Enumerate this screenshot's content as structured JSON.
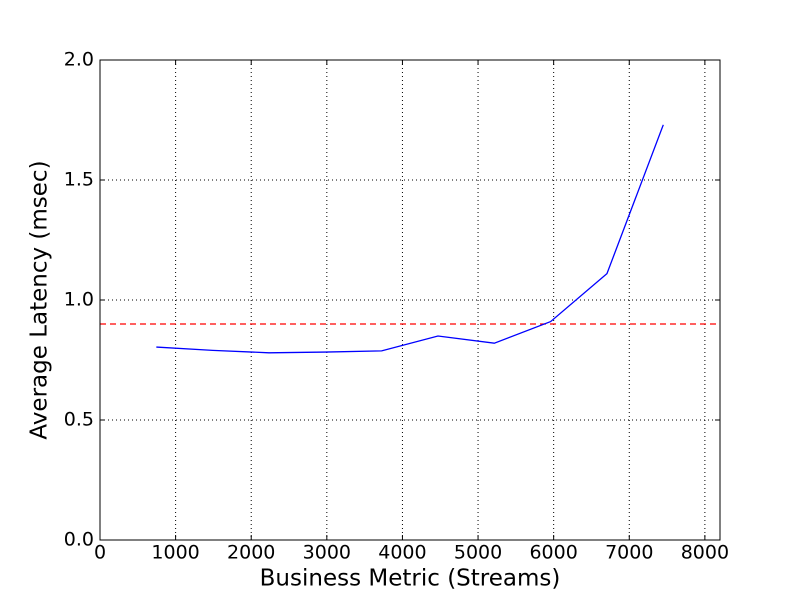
{
  "chart_data": {
    "type": "line",
    "x_label": "Business Metric (Streams)",
    "y_label": "Average Latency (msec)",
    "x": [
      745,
      1490,
      2235,
      2980,
      3725,
      4470,
      5215,
      5960,
      6705,
      7450
    ],
    "series": [
      {
        "color": "#0000ff",
        "values": [
          0.804,
          0.79,
          0.78,
          0.783,
          0.788,
          0.85,
          0.82,
          0.91,
          1.11,
          1.73
        ]
      }
    ],
    "reference_line": {
      "value": 0.9,
      "color": "#ff0000",
      "style": "dashed"
    },
    "xlim": [
      0,
      8200
    ],
    "ylim": [
      0,
      2.0
    ],
    "xticks": [
      0,
      1000,
      2000,
      3000,
      4000,
      5000,
      6000,
      7000,
      8000
    ],
    "yticks": [
      {
        "value": 0,
        "label": "0.0"
      },
      0.5,
      {
        "value": 1.0,
        "label": "1.0"
      },
      1.5,
      {
        "value": 2.0,
        "label": "2.0"
      }
    ],
    "grid": true
  }
}
